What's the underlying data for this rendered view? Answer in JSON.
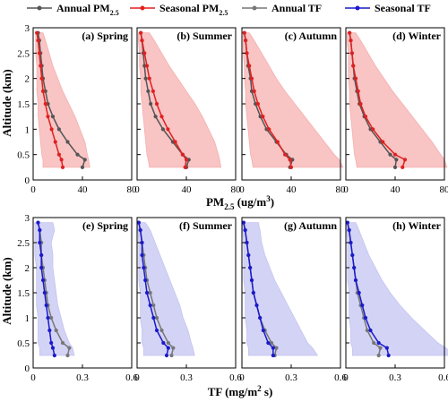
{
  "legend": [
    {
      "label": "Annual PM",
      "sub": "2.5",
      "color": "#555555"
    },
    {
      "label": "Seasonal PM",
      "sub": "2.5",
      "color": "#e02020"
    },
    {
      "label": "Annual TF",
      "sub": "",
      "color": "#777777"
    },
    {
      "label": "Seasonal TF",
      "sub": "",
      "color": "#1a1acc"
    }
  ],
  "ylabel": "Altitude (km)",
  "xlabel_pm": {
    "main": "PM",
    "sub": "2.5",
    "rest": " (ug/m",
    "sup": "3",
    "end": ")"
  },
  "xlabel_tf": {
    "main": "TF (mg/m",
    "sup": "2",
    "end": " s)"
  },
  "chart_data": [
    {
      "type": "line",
      "panel": "(a) Spring",
      "row": 0,
      "col": 0,
      "y": [
        2.9,
        2.75,
        2.5,
        2.25,
        2.0,
        1.75,
        1.5,
        1.25,
        1.0,
        0.75,
        0.5,
        0.4,
        0.25
      ],
      "series": [
        {
          "name": "Annual PM2.5",
          "color": "#555555",
          "x": [
            4,
            5,
            6,
            7,
            8,
            10,
            12,
            16,
            21,
            28,
            36,
            42,
            40
          ]
        },
        {
          "name": "Seasonal PM2.5",
          "color": "#e02020",
          "x": [
            3,
            4,
            5,
            6,
            7,
            8,
            10,
            12,
            15,
            18,
            21,
            23,
            24
          ]
        }
      ],
      "band": {
        "low": [
          2,
          2,
          2,
          3,
          3,
          3,
          4,
          4,
          5,
          6,
          7,
          8,
          8
        ],
        "high": [
          8,
          10,
          13,
          16,
          20,
          24,
          29,
          34,
          38,
          42,
          44,
          45,
          46
        ]
      },
      "band_color": "#f6b0b0",
      "xlim": [
        0,
        80
      ],
      "xticks": [
        0,
        40,
        80
      ],
      "ylim": [
        0,
        3
      ]
    },
    {
      "type": "line",
      "panel": "(b) Summer",
      "row": 0,
      "col": 1,
      "y": [
        2.9,
        2.75,
        2.5,
        2.25,
        2.0,
        1.75,
        1.5,
        1.25,
        1.0,
        0.75,
        0.5,
        0.4,
        0.25
      ],
      "series": [
        {
          "name": "Annual PM2.5",
          "color": "#555555",
          "x": [
            3,
            4,
            5,
            6,
            7,
            9,
            11,
            15,
            21,
            29,
            37,
            42,
            40
          ]
        },
        {
          "name": "Seasonal PM2.5",
          "color": "#e02020",
          "x": [
            3,
            4,
            6,
            8,
            10,
            13,
            16,
            20,
            25,
            31,
            37,
            40,
            39
          ]
        }
      ],
      "band": {
        "low": [
          1,
          1,
          2,
          2,
          3,
          3,
          4,
          5,
          6,
          7,
          8,
          9,
          10
        ],
        "high": [
          10,
          14,
          20,
          26,
          33,
          40,
          47,
          53,
          58,
          63,
          66,
          67,
          68
        ]
      },
      "band_color": "#f6b0b0",
      "xlim": [
        0,
        80
      ],
      "xticks": [
        0,
        40,
        80
      ],
      "ylim": [
        0,
        3
      ]
    },
    {
      "type": "line",
      "panel": "(c) Autumn",
      "row": 0,
      "col": 2,
      "y": [
        2.9,
        2.75,
        2.5,
        2.25,
        2.0,
        1.75,
        1.5,
        1.25,
        1.0,
        0.75,
        0.5,
        0.4,
        0.25
      ],
      "series": [
        {
          "name": "Annual PM2.5",
          "color": "#555555",
          "x": [
            2,
            3,
            4,
            5,
            7,
            8,
            11,
            15,
            20,
            28,
            36,
            41,
            39
          ]
        },
        {
          "name": "Seasonal PM2.5",
          "color": "#e02020",
          "x": [
            2,
            3,
            4,
            6,
            8,
            10,
            13,
            17,
            22,
            29,
            35,
            39,
            40
          ]
        }
      ],
      "band": {
        "low": [
          1,
          1,
          1,
          2,
          2,
          3,
          3,
          4,
          5,
          6,
          7,
          8,
          9
        ],
        "high": [
          6,
          10,
          16,
          22,
          28,
          35,
          43,
          51,
          59,
          67,
          75,
          79,
          82
        ]
      },
      "band_color": "#f6b0b0",
      "xlim": [
        0,
        80
      ],
      "xticks": [
        0,
        40,
        80
      ],
      "ylim": [
        0,
        3
      ]
    },
    {
      "type": "line",
      "panel": "(d) Winter",
      "row": 0,
      "col": 3,
      "y": [
        2.9,
        2.75,
        2.5,
        2.25,
        2.0,
        1.75,
        1.5,
        1.25,
        1.0,
        0.75,
        0.5,
        0.4,
        0.25
      ],
      "series": [
        {
          "name": "Annual PM2.5",
          "color": "#555555",
          "x": [
            3,
            4,
            5,
            6,
            7,
            9,
            11,
            15,
            20,
            28,
            36,
            41,
            40
          ]
        },
        {
          "name": "Seasonal PM2.5",
          "color": "#e02020",
          "x": [
            3,
            4,
            5,
            6,
            8,
            10,
            12,
            16,
            22,
            30,
            40,
            48,
            46
          ]
        }
      ],
      "band": {
        "low": [
          1,
          1,
          2,
          2,
          2,
          3,
          3,
          4,
          5,
          6,
          7,
          8,
          9
        ],
        "high": [
          8,
          12,
          18,
          24,
          31,
          38,
          46,
          54,
          62,
          70,
          77,
          80,
          82
        ]
      },
      "band_color": "#f6b0b0",
      "xlim": [
        0,
        80
      ],
      "xticks": [
        0,
        40,
        80
      ],
      "ylim": [
        0,
        3
      ]
    },
    {
      "type": "line",
      "panel": "(e) Spring",
      "row": 1,
      "col": 0,
      "y": [
        2.9,
        2.75,
        2.5,
        2.25,
        2.0,
        1.75,
        1.5,
        1.25,
        1.0,
        0.75,
        0.5,
        0.4,
        0.25
      ],
      "series": [
        {
          "name": "Annual TF",
          "color": "#777777",
          "x": [
            0.03,
            0.04,
            0.05,
            0.05,
            0.06,
            0.07,
            0.08,
            0.09,
            0.11,
            0.14,
            0.18,
            0.22,
            0.21
          ]
        },
        {
          "name": "Seasonal TF",
          "color": "#1a1acc",
          "x": [
            0.03,
            0.04,
            0.04,
            0.05,
            0.05,
            0.06,
            0.07,
            0.08,
            0.09,
            0.1,
            0.11,
            0.12,
            0.13
          ]
        }
      ],
      "band": {
        "low": [
          0.01,
          0.01,
          0.01,
          0.01,
          0.02,
          0.02,
          0.02,
          0.02,
          0.03,
          0.03,
          0.03,
          0.04,
          0.04
        ],
        "high": [
          0.12,
          0.13,
          0.11,
          0.12,
          0.12,
          0.13,
          0.14,
          0.15,
          0.17,
          0.19,
          0.22,
          0.24,
          0.25
        ]
      },
      "band_color": "#c4c4f2",
      "xlim": [
        0,
        0.6
      ],
      "xticks": [
        0,
        0.3,
        0.6
      ],
      "ylim": [
        0,
        3
      ]
    },
    {
      "type": "line",
      "panel": "(f) Summer",
      "row": 1,
      "col": 1,
      "y": [
        2.9,
        2.75,
        2.5,
        2.25,
        2.0,
        1.75,
        1.5,
        1.25,
        1.0,
        0.75,
        0.5,
        0.4,
        0.25
      ],
      "series": [
        {
          "name": "Annual TF",
          "color": "#777777",
          "x": [
            0.01,
            0.02,
            0.03,
            0.04,
            0.05,
            0.06,
            0.08,
            0.1,
            0.12,
            0.15,
            0.19,
            0.22,
            0.21
          ]
        },
        {
          "name": "Seasonal TF",
          "color": "#1a1acc",
          "x": [
            0.01,
            0.02,
            0.03,
            0.03,
            0.04,
            0.05,
            0.06,
            0.08,
            0.1,
            0.12,
            0.16,
            0.19,
            0.18
          ]
        }
      ],
      "band": {
        "low": [
          0.005,
          0.005,
          0.01,
          0.01,
          0.01,
          0.01,
          0.02,
          0.02,
          0.02,
          0.03,
          0.03,
          0.04,
          0.04
        ],
        "high": [
          0.05,
          0.08,
          0.11,
          0.14,
          0.17,
          0.2,
          0.23,
          0.26,
          0.28,
          0.31,
          0.33,
          0.34,
          0.35
        ]
      },
      "band_color": "#c4c4f2",
      "xlim": [
        0,
        0.6
      ],
      "xticks": [
        0,
        0.3,
        0.6
      ],
      "ylim": [
        0,
        3
      ]
    },
    {
      "type": "line",
      "panel": "(g) Autumn",
      "row": 1,
      "col": 2,
      "y": [
        2.9,
        2.75,
        2.5,
        2.25,
        2.0,
        1.75,
        1.5,
        1.25,
        1.0,
        0.75,
        0.5,
        0.4,
        0.25
      ],
      "series": [
        {
          "name": "Annual TF",
          "color": "#777777",
          "x": [
            0.01,
            0.02,
            0.03,
            0.04,
            0.05,
            0.06,
            0.07,
            0.09,
            0.11,
            0.14,
            0.18,
            0.21,
            0.2
          ]
        },
        {
          "name": "Seasonal TF",
          "color": "#1a1acc",
          "x": [
            0.01,
            0.02,
            0.03,
            0.04,
            0.05,
            0.06,
            0.07,
            0.09,
            0.11,
            0.13,
            0.16,
            0.19,
            0.19
          ]
        }
      ],
      "band": {
        "low": [
          0.005,
          0.005,
          0.01,
          0.01,
          0.01,
          0.01,
          0.02,
          0.02,
          0.02,
          0.03,
          0.03,
          0.04,
          0.04
        ],
        "high": [
          0.1,
          0.11,
          0.12,
          0.14,
          0.17,
          0.2,
          0.24,
          0.28,
          0.32,
          0.36,
          0.4,
          0.43,
          0.46
        ]
      },
      "band_color": "#c4c4f2",
      "xlim": [
        0,
        0.6
      ],
      "xticks": [
        0,
        0.3,
        0.6
      ],
      "ylim": [
        0,
        3
      ]
    },
    {
      "type": "line",
      "panel": "(h) Winter",
      "row": 1,
      "col": 3,
      "y": [
        2.9,
        2.75,
        2.5,
        2.25,
        2.0,
        1.75,
        1.5,
        1.25,
        1.0,
        0.75,
        0.5,
        0.4,
        0.25
      ],
      "series": [
        {
          "name": "Annual TF",
          "color": "#777777",
          "x": [
            0.01,
            0.02,
            0.03,
            0.04,
            0.05,
            0.06,
            0.07,
            0.09,
            0.11,
            0.13,
            0.17,
            0.21,
            0.2
          ]
        },
        {
          "name": "Seasonal TF",
          "color": "#1a1acc",
          "x": [
            0.01,
            0.02,
            0.03,
            0.04,
            0.05,
            0.06,
            0.08,
            0.1,
            0.12,
            0.15,
            0.2,
            0.25,
            0.26
          ]
        }
      ],
      "band": {
        "low": [
          0.005,
          0.005,
          0.01,
          0.01,
          0.01,
          0.01,
          0.02,
          0.02,
          0.02,
          0.03,
          0.03,
          0.04,
          0.04
        ],
        "high": [
          0.06,
          0.08,
          0.11,
          0.14,
          0.18,
          0.22,
          0.27,
          0.33,
          0.4,
          0.48,
          0.56,
          0.61,
          0.65
        ]
      },
      "band_color": "#c4c4f2",
      "xlim": [
        0,
        0.6
      ],
      "xticks": [
        0,
        0.3,
        0.6
      ],
      "ylim": [
        0,
        3
      ]
    }
  ]
}
